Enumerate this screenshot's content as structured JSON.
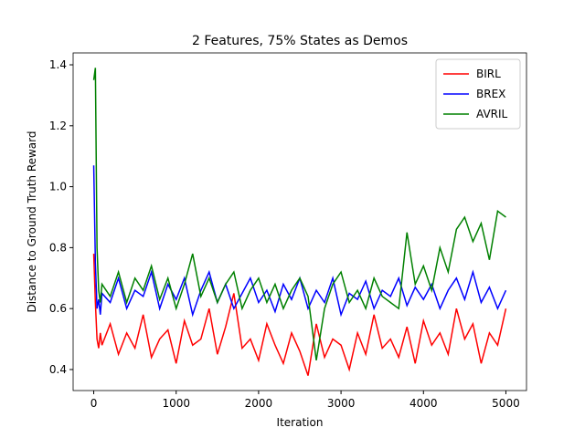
{
  "chart_data": {
    "type": "line",
    "title": "2 Features, 75% States as Demos",
    "xlabel": "Iteration",
    "ylabel": "Distance to Ground Truth Reward",
    "x": [
      0,
      20,
      40,
      60,
      80,
      100,
      200,
      300,
      400,
      500,
      600,
      700,
      800,
      900,
      1000,
      1100,
      1200,
      1300,
      1400,
      1500,
      1600,
      1700,
      1800,
      1900,
      2000,
      2100,
      2200,
      2300,
      2400,
      2500,
      2600,
      2700,
      2800,
      2900,
      3000,
      3100,
      3200,
      3300,
      3400,
      3500,
      3600,
      3700,
      3800,
      3900,
      4000,
      4100,
      4200,
      4300,
      4400,
      4500,
      4600,
      4700,
      4800,
      4900,
      5000
    ],
    "series": [
      {
        "name": "BIRL",
        "color": "#ff0000",
        "values": [
          0.78,
          0.62,
          0.5,
          0.47,
          0.52,
          0.48,
          0.55,
          0.45,
          0.52,
          0.47,
          0.58,
          0.44,
          0.5,
          0.53,
          0.42,
          0.56,
          0.48,
          0.5,
          0.6,
          0.45,
          0.54,
          0.65,
          0.47,
          0.5,
          0.43,
          0.55,
          0.48,
          0.42,
          0.52,
          0.46,
          0.38,
          0.55,
          0.44,
          0.5,
          0.48,
          0.4,
          0.52,
          0.45,
          0.58,
          0.47,
          0.5,
          0.44,
          0.54,
          0.42,
          0.56,
          0.48,
          0.52,
          0.45,
          0.6,
          0.5,
          0.55,
          0.42,
          0.52,
          0.48,
          0.6
        ]
      },
      {
        "name": "BREX",
        "color": "#0000ff",
        "values": [
          1.07,
          0.75,
          0.6,
          0.63,
          0.58,
          0.65,
          0.62,
          0.7,
          0.6,
          0.66,
          0.64,
          0.72,
          0.6,
          0.68,
          0.63,
          0.7,
          0.58,
          0.66,
          0.72,
          0.62,
          0.68,
          0.6,
          0.65,
          0.7,
          0.62,
          0.66,
          0.59,
          0.68,
          0.63,
          0.7,
          0.6,
          0.66,
          0.62,
          0.7,
          0.58,
          0.65,
          0.63,
          0.69,
          0.6,
          0.66,
          0.64,
          0.7,
          0.61,
          0.67,
          0.63,
          0.68,
          0.6,
          0.66,
          0.7,
          0.63,
          0.72,
          0.62,
          0.67,
          0.6,
          0.66
        ]
      },
      {
        "name": "AVRIL",
        "color": "#008000",
        "values": [
          1.35,
          1.39,
          0.8,
          0.66,
          0.62,
          0.68,
          0.64,
          0.72,
          0.62,
          0.7,
          0.66,
          0.74,
          0.63,
          0.7,
          0.6,
          0.68,
          0.78,
          0.64,
          0.7,
          0.62,
          0.68,
          0.72,
          0.6,
          0.66,
          0.7,
          0.62,
          0.68,
          0.6,
          0.66,
          0.7,
          0.64,
          0.43,
          0.6,
          0.68,
          0.72,
          0.62,
          0.66,
          0.6,
          0.7,
          0.64,
          0.62,
          0.6,
          0.85,
          0.68,
          0.74,
          0.66,
          0.8,
          0.72,
          0.86,
          0.9,
          0.82,
          0.88,
          0.76,
          0.92,
          0.9
        ]
      }
    ],
    "xlim": [
      -250,
      5250
    ],
    "ylim": [
      0.331,
      1.439
    ],
    "xticks": [
      0,
      1000,
      2000,
      3000,
      4000,
      5000
    ],
    "yticks": [
      0.4,
      0.6,
      0.8,
      {
        "value": 1,
        "label": "1.0"
      },
      1.2,
      1.4
    ],
    "legend": "upper right"
  }
}
